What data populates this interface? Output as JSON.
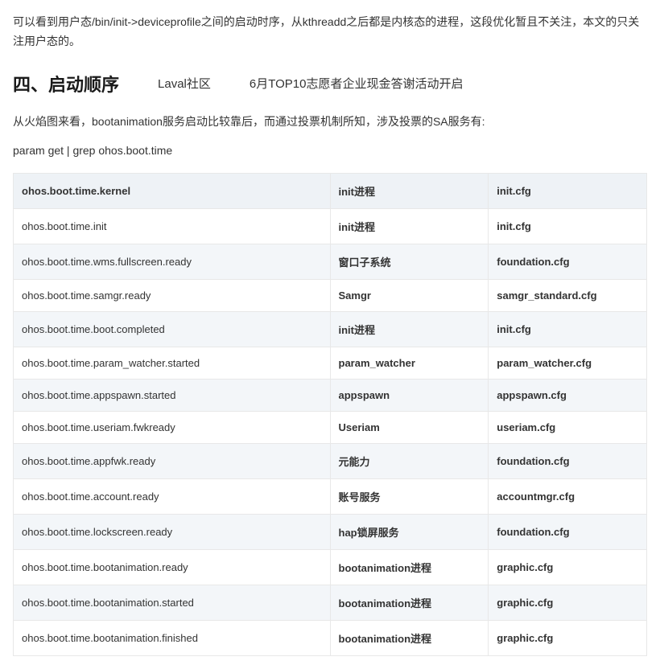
{
  "intro": "可以看到用户态/bin/init->deviceprofile之间的启动时序，从kthreadd之后都是内核态的进程，这段优化暂且不关注，本文的只关注用户态的。",
  "section_heading": "四、启动顺序",
  "banner1": "Laval社区",
  "banner2": "6月TOP10志愿者企业现金答谢活动开启",
  "desc": "从火焰图来看，bootanimation服务启动比较靠后，而通过投票机制所知，涉及投票的SA服务有:",
  "code_line": "param get | grep ohos.boot.time",
  "table": {
    "rows": [
      {
        "c1": "ohos.boot.time.kernel",
        "c2": "init进程",
        "c3": "init.cfg"
      },
      {
        "c1": "ohos.boot.time.init",
        "c2": "init进程",
        "c3": "init.cfg"
      },
      {
        "c1": "ohos.boot.time.wms.fullscreen.ready",
        "c2": "窗口子系统",
        "c3": "foundation.cfg"
      },
      {
        "c1": "ohos.boot.time.samgr.ready",
        "c2": "Samgr",
        "c3": "samgr_standard.cfg"
      },
      {
        "c1": "ohos.boot.time.boot.completed",
        "c2": "init进程",
        "c3": "init.cfg"
      },
      {
        "c1": "ohos.boot.time.param_watcher.started",
        "c2": "param_watcher",
        "c3": "param_watcher.cfg"
      },
      {
        "c1": "ohos.boot.time.appspawn.started",
        "c2": "appspawn",
        "c3": "appspawn.cfg"
      },
      {
        "c1": "ohos.boot.time.useriam.fwkready",
        "c2": "Useriam",
        "c3": "useriam.cfg"
      },
      {
        "c1": "ohos.boot.time.appfwk.ready",
        "c2": "元能力",
        "c3": "foundation.cfg"
      },
      {
        "c1": "ohos.boot.time.account.ready",
        "c2": "账号服务",
        "c3": "accountmgr.cfg"
      },
      {
        "c1": "ohos.boot.time.lockscreen.ready",
        "c2": "hap锁屏服务",
        "c3": "foundation.cfg"
      },
      {
        "c1": "ohos.boot.time.bootanimation.ready",
        "c2": "bootanimation进程",
        "c3": "graphic.cfg"
      },
      {
        "c1": "ohos.boot.time.bootanimation.started",
        "c2": "bootanimation进程",
        "c3": "graphic.cfg"
      },
      {
        "c1": "ohos.boot.time.bootanimation.finished",
        "c2": "bootanimation进程",
        "c3": "graphic.cfg"
      }
    ]
  }
}
